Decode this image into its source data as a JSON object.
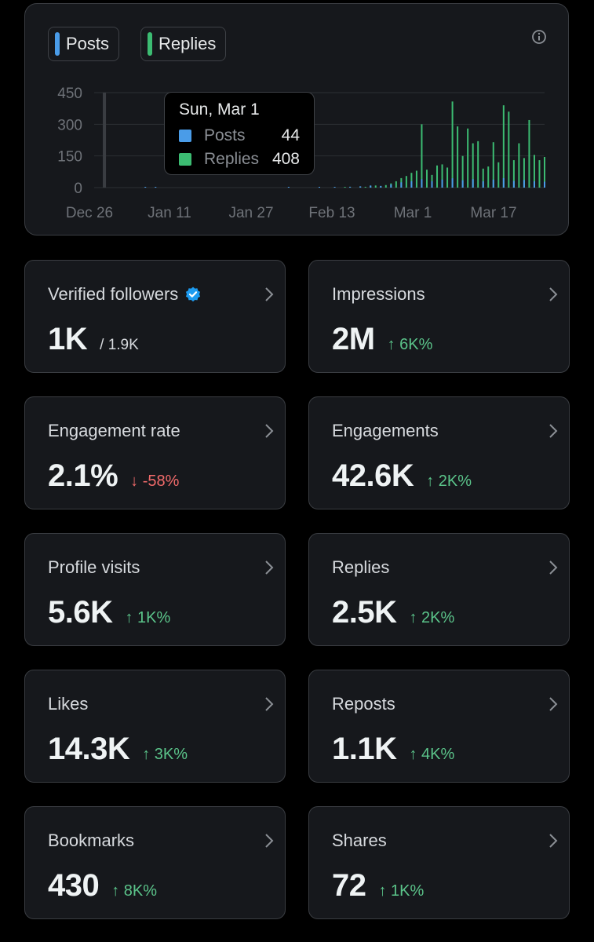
{
  "colors": {
    "posts": "#4a9ce8",
    "replies": "#3cbc72",
    "up": "#5bc48a",
    "down": "#f06a6a"
  },
  "chart": {
    "legend": {
      "posts": "Posts",
      "replies": "Replies"
    },
    "info_icon": "info-icon",
    "tooltip": {
      "date": "Sun, Mar 1",
      "rows": [
        {
          "name": "Posts",
          "value": "44"
        },
        {
          "name": "Replies",
          "value": "408"
        }
      ]
    }
  },
  "chart_data": {
    "type": "bar",
    "y_ticks": [
      "450",
      "300",
      "150",
      "0"
    ],
    "x_ticks": [
      "Dec 26",
      "Jan 11",
      "Jan 27",
      "Feb 13",
      "Mar 1",
      "Mar 17"
    ],
    "ylim": [
      0,
      450
    ],
    "x_range_days": [
      0,
      88
    ],
    "grid": true,
    "highlight_day": 2,
    "series": [
      {
        "name": "Replies",
        "color": "#3cbc72",
        "values": [
          {
            "day": 49,
            "v": 3
          },
          {
            "day": 50,
            "v": 4
          },
          {
            "day": 52,
            "v": 5
          },
          {
            "day": 53,
            "v": 4
          },
          {
            "day": 54,
            "v": 8
          },
          {
            "day": 55,
            "v": 10
          },
          {
            "day": 56,
            "v": 6
          },
          {
            "day": 57,
            "v": 12
          },
          {
            "day": 58,
            "v": 20
          },
          {
            "day": 59,
            "v": 30
          },
          {
            "day": 60,
            "v": 45
          },
          {
            "day": 61,
            "v": 55
          },
          {
            "day": 62,
            "v": 70
          },
          {
            "day": 63,
            "v": 80
          },
          {
            "day": 64,
            "v": 300
          },
          {
            "day": 65,
            "v": 85
          },
          {
            "day": 66,
            "v": 60
          },
          {
            "day": 67,
            "v": 105
          },
          {
            "day": 68,
            "v": 110
          },
          {
            "day": 69,
            "v": 95
          },
          {
            "day": 70,
            "v": 408
          },
          {
            "day": 71,
            "v": 290
          },
          {
            "day": 72,
            "v": 150
          },
          {
            "day": 73,
            "v": 280
          },
          {
            "day": 74,
            "v": 210
          },
          {
            "day": 75,
            "v": 220
          },
          {
            "day": 76,
            "v": 90
          },
          {
            "day": 77,
            "v": 100
          },
          {
            "day": 78,
            "v": 215
          },
          {
            "day": 79,
            "v": 120
          },
          {
            "day": 80,
            "v": 390
          },
          {
            "day": 81,
            "v": 360
          },
          {
            "day": 82,
            "v": 130
          },
          {
            "day": 83,
            "v": 210
          },
          {
            "day": 84,
            "v": 140
          },
          {
            "day": 85,
            "v": 320
          },
          {
            "day": 86,
            "v": 155
          },
          {
            "day": 87,
            "v": 130
          },
          {
            "day": 88,
            "v": 145
          }
        ]
      },
      {
        "name": "Posts",
        "color": "#4a9ce8",
        "values": [
          {
            "day": 10,
            "v": 1
          },
          {
            "day": 12,
            "v": 1
          },
          {
            "day": 38,
            "v": 1
          },
          {
            "day": 44,
            "v": 2
          },
          {
            "day": 47,
            "v": 3
          },
          {
            "day": 50,
            "v": 4
          },
          {
            "day": 52,
            "v": 6
          },
          {
            "day": 54,
            "v": 10
          },
          {
            "day": 56,
            "v": 8
          },
          {
            "day": 58,
            "v": 15
          },
          {
            "day": 60,
            "v": 25
          },
          {
            "day": 62,
            "v": 30
          },
          {
            "day": 64,
            "v": 40
          },
          {
            "day": 66,
            "v": 30
          },
          {
            "day": 68,
            "v": 38
          },
          {
            "day": 70,
            "v": 44
          },
          {
            "day": 72,
            "v": 35
          },
          {
            "day": 74,
            "v": 40
          },
          {
            "day": 76,
            "v": 30
          },
          {
            "day": 78,
            "v": 38
          },
          {
            "day": 80,
            "v": 45
          },
          {
            "day": 82,
            "v": 32
          },
          {
            "day": 84,
            "v": 36
          },
          {
            "day": 86,
            "v": 30
          },
          {
            "day": 88,
            "v": 28
          }
        ]
      }
    ]
  },
  "stats": [
    {
      "label": "Verified followers",
      "value": "1K",
      "sub": "/ 1.9K",
      "badge": "verified-badge-icon"
    },
    {
      "label": "Impressions",
      "value": "2M",
      "delta": "↑ 6K%",
      "dir": "up"
    },
    {
      "label": "Engagement rate",
      "value": "2.1%",
      "delta": "↓ -58%",
      "dir": "down"
    },
    {
      "label": "Engagements",
      "value": "42.6K",
      "delta": "↑ 2K%",
      "dir": "up"
    },
    {
      "label": "Profile visits",
      "value": "5.6K",
      "delta": "↑ 1K%",
      "dir": "up"
    },
    {
      "label": "Replies",
      "value": "2.5K",
      "delta": "↑ 2K%",
      "dir": "up"
    },
    {
      "label": "Likes",
      "value": "14.3K",
      "delta": "↑ 3K%",
      "dir": "up"
    },
    {
      "label": "Reposts",
      "value": "1.1K",
      "delta": "↑ 4K%",
      "dir": "up"
    },
    {
      "label": "Bookmarks",
      "value": "430",
      "delta": "↑ 8K%",
      "dir": "up"
    },
    {
      "label": "Shares",
      "value": "72",
      "delta": "↑ 1K%",
      "dir": "up"
    }
  ]
}
